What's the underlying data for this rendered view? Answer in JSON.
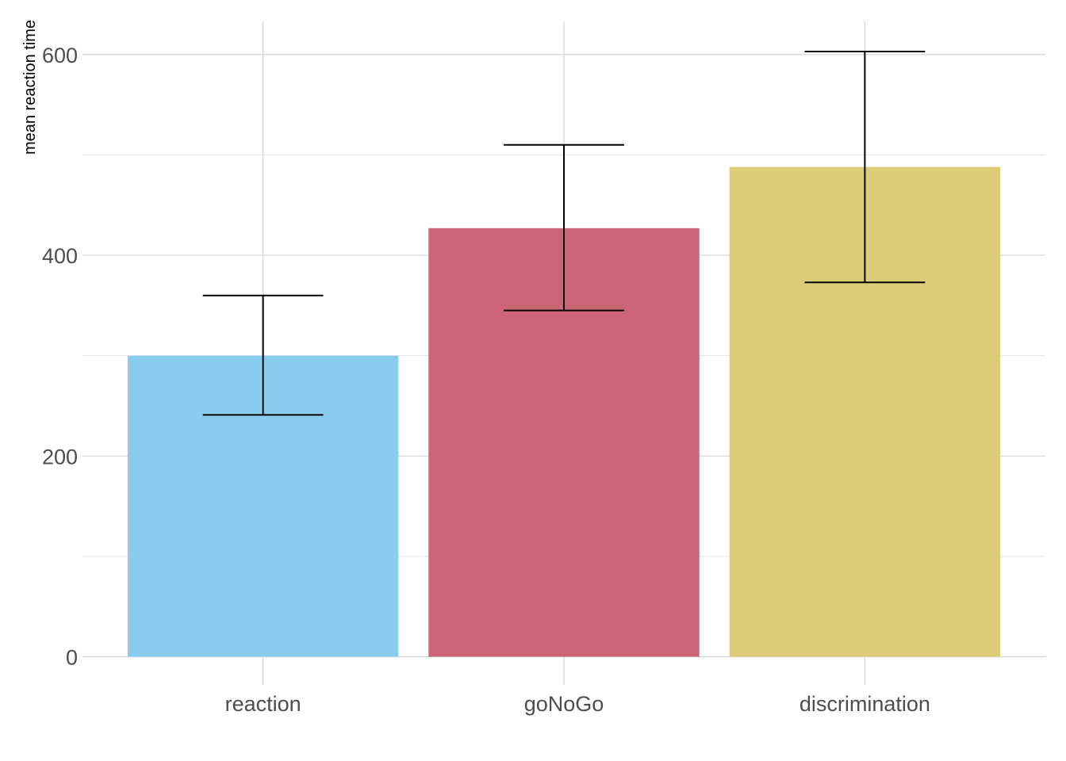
{
  "chart_data": {
    "type": "bar",
    "title": "",
    "xlabel": "",
    "ylabel": "mean reaction time",
    "categories": [
      "reaction",
      "goNoGo",
      "discrimination"
    ],
    "values": [
      300,
      427,
      488
    ],
    "error_low": [
      241,
      345,
      373
    ],
    "error_high": [
      360,
      510,
      603
    ],
    "colors": [
      "#88ccee",
      "#cc6677",
      "#ddcc77"
    ],
    "ylim": [
      -28,
      633
    ],
    "yticks": [
      0,
      200,
      400,
      600
    ],
    "yticks_minor": [
      100,
      300,
      500
    ],
    "grid": true,
    "legend": "none"
  }
}
